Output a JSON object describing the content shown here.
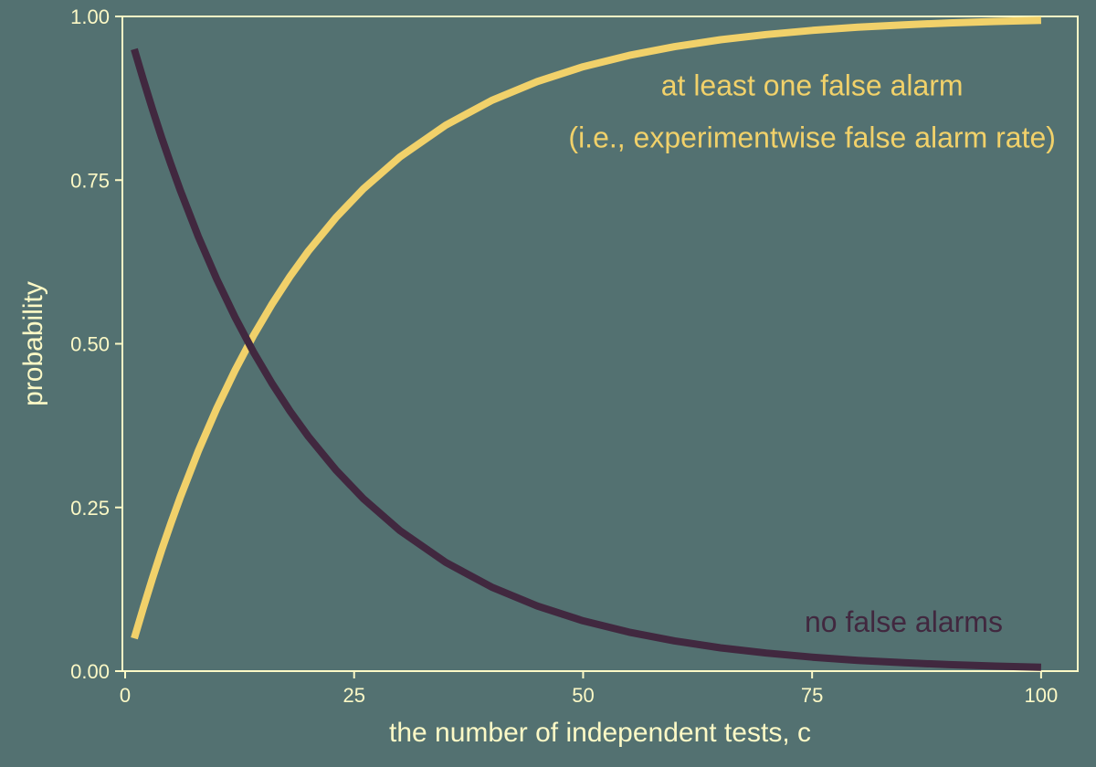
{
  "chart_data": {
    "type": "line",
    "title": "",
    "xlabel": "the number of independent tests, c",
    "ylabel": "probability",
    "xlim": [
      -0.3,
      104
    ],
    "ylim": [
      0,
      1
    ],
    "x_ticks": [
      0,
      25,
      50,
      75,
      100
    ],
    "y_ticks": [
      0,
      0.25,
      0.5,
      0.75,
      1
    ],
    "x_tick_labels": [
      "0",
      "25",
      "50",
      "75",
      "100"
    ],
    "y_tick_labels": [
      "0.00",
      "0.25",
      "0.50",
      "0.75",
      "1.00"
    ],
    "grid": false,
    "legend": "none",
    "colors": {
      "background": "#537171",
      "axis": "#FCF9C6",
      "at_least_one": "#F1D16A",
      "none": "#41283F"
    },
    "series": [
      {
        "key": "at_least_one",
        "x": [
          1,
          2,
          3,
          4,
          5,
          6,
          8,
          10,
          12,
          14,
          16,
          18,
          20,
          23,
          26,
          30,
          35,
          40,
          45,
          50,
          55,
          60,
          65,
          70,
          75,
          80,
          85,
          90,
          95,
          100
        ],
        "y": [
          0.05,
          0.0975,
          0.1426,
          0.1855,
          0.2262,
          0.2649,
          0.3366,
          0.4013,
          0.4596,
          0.5123,
          0.5599,
          0.6028,
          0.6415,
          0.6926,
          0.7365,
          0.7854,
          0.8339,
          0.8715,
          0.9006,
          0.9231,
          0.9405,
          0.9539,
          0.9644,
          0.9724,
          0.9787,
          0.9835,
          0.9872,
          0.9901,
          0.9923,
          0.9941
        ]
      },
      {
        "key": "none",
        "x": [
          1,
          2,
          3,
          4,
          5,
          6,
          8,
          10,
          12,
          14,
          16,
          18,
          20,
          23,
          26,
          30,
          35,
          40,
          45,
          50,
          55,
          60,
          65,
          70,
          75,
          80,
          85,
          90,
          95,
          100
        ],
        "y": [
          0.95,
          0.9025,
          0.8574,
          0.8145,
          0.7738,
          0.7351,
          0.6634,
          0.5987,
          0.5404,
          0.4877,
          0.4401,
          0.3972,
          0.3585,
          0.3074,
          0.2635,
          0.2146,
          0.1661,
          0.1285,
          0.0994,
          0.0769,
          0.0595,
          0.0461,
          0.0356,
          0.0276,
          0.0213,
          0.0165,
          0.0128,
          0.0099,
          0.0077,
          0.0059
        ]
      }
    ],
    "annotations": [
      {
        "key": "at_least_one_line1",
        "text": "at least one false alarm",
        "x": 75,
        "y": 0.895
      },
      {
        "key": "at_least_one_line2",
        "text": "(i.e., experimentwise false alarm rate)",
        "x": 75,
        "y": 0.815
      },
      {
        "key": "none_label",
        "text": "no false alarms",
        "x": 85,
        "y": 0.075
      }
    ]
  }
}
